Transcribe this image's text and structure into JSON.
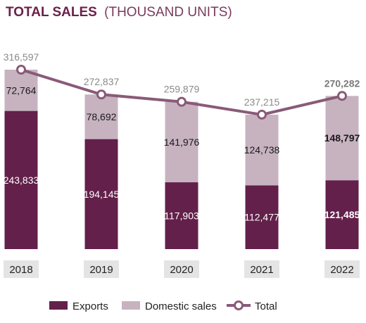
{
  "chart_data": {
    "type": "bar",
    "title": "TOTAL SALES",
    "title_suffix": "(THOUSAND UNITS)",
    "categories": [
      "2018",
      "2019",
      "2020",
      "2021",
      "2022"
    ],
    "series": [
      {
        "name": "Exports",
        "values": [
          243833,
          194145,
          117903,
          112477,
          121485
        ],
        "color": "#63204a",
        "labels": [
          "243,833",
          "194,145",
          "117,903",
          "112,477",
          "121,485"
        ]
      },
      {
        "name": "Domestic sales",
        "values": [
          72764,
          78692,
          141976,
          124738,
          148797
        ],
        "color": "#c7b3c0",
        "labels": [
          "72,764",
          "78,692",
          "141,976",
          "124,738",
          "148,797"
        ]
      },
      {
        "name": "Total",
        "type": "line",
        "values": [
          316597,
          272837,
          259879,
          237215,
          270282
        ],
        "color": "#8a5a78",
        "labels": [
          "316,597",
          "272,837",
          "259,879",
          "237,215",
          "270,282"
        ]
      }
    ],
    "highlight_category": "2022",
    "ylim": [
      0,
      340000
    ],
    "stacked": true,
    "legend_position": "bottom",
    "grid": false
  }
}
